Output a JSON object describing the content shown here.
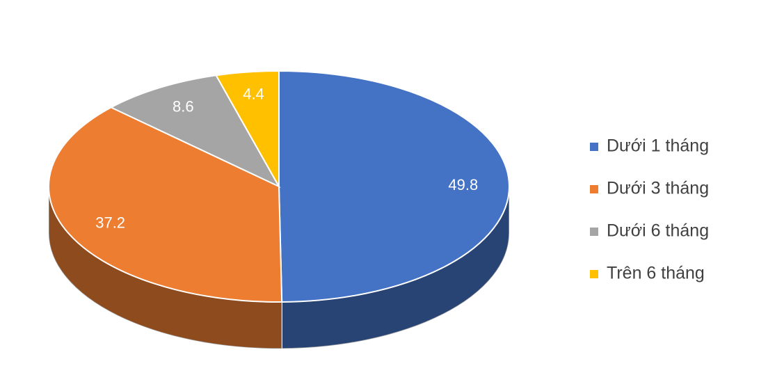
{
  "chart_data": {
    "type": "pie",
    "categories": [
      "Dưới 1 tháng",
      "Dưới 3 tháng",
      "Dưới 6 tháng",
      "Trên 6 tháng"
    ],
    "values": [
      49.8,
      37.2,
      8.6,
      4.4
    ],
    "colors": [
      "#4472c4",
      "#ed7d31",
      "#a5a5a5",
      "#ffc000"
    ],
    "legend": "right"
  }
}
